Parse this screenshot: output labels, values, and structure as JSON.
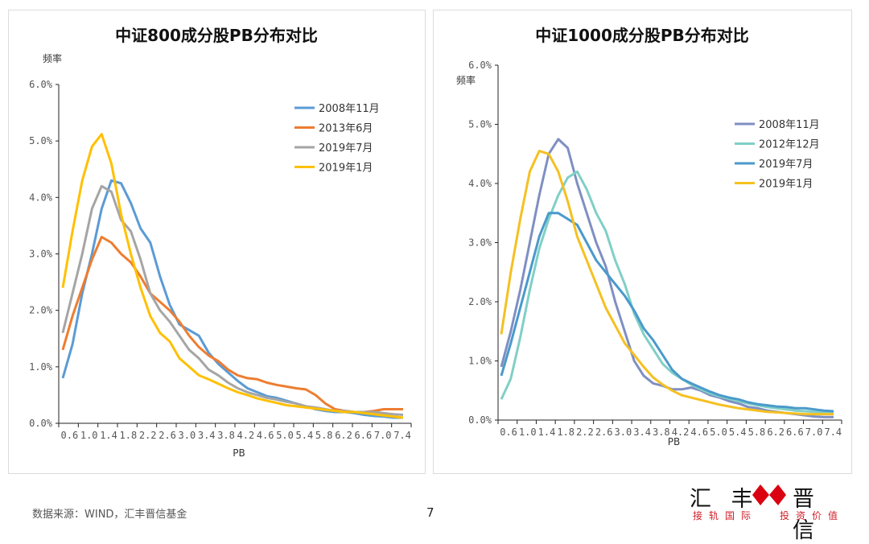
{
  "charts_meta": {
    "footer_source": "数据来源：WIND，汇丰晋信基金",
    "page_number": "7",
    "logo": {
      "left": "汇 丰",
      "right": "晋 信",
      "slogan_left": "接轨国际",
      "slogan_right": "投资价值"
    }
  },
  "chart_data": [
    {
      "type": "line",
      "title": "中证800成分股PB分布对比",
      "ylabel": "频率",
      "xlabel": "PB",
      "ylim": [
        0,
        6
      ],
      "yticks": [
        "0.0%",
        "1.0%",
        "2.0%",
        "3.0%",
        "4.0%",
        "5.0%",
        "6.0%"
      ],
      "xticks": [
        "0.6",
        "1.0",
        "1.4",
        "1.8",
        "2.2",
        "2.6",
        "3.0",
        "3.4",
        "3.8",
        "4.2",
        "4.6",
        "5.0",
        "5.4",
        "5.8",
        "6.2",
        "6.6",
        "7.0",
        "7.4"
      ],
      "legend_position": "top-right",
      "x": [
        0.6,
        0.8,
        1.0,
        1.2,
        1.4,
        1.6,
        1.8,
        2.0,
        2.2,
        2.4,
        2.6,
        2.8,
        3.0,
        3.2,
        3.4,
        3.6,
        3.8,
        4.0,
        4.2,
        4.4,
        4.6,
        4.8,
        5.0,
        5.2,
        5.4,
        5.6,
        5.8,
        6.0,
        6.2,
        6.4,
        6.6,
        6.8,
        7.0,
        7.2,
        7.4,
        7.6
      ],
      "series": [
        {
          "name": "2008年11月",
          "color": "#5b9bd5",
          "values": [
            0.8,
            1.4,
            2.3,
            3.0,
            3.8,
            4.3,
            4.25,
            3.9,
            3.45,
            3.2,
            2.6,
            2.1,
            1.75,
            1.65,
            1.55,
            1.25,
            1.05,
            0.9,
            0.75,
            0.62,
            0.55,
            0.48,
            0.45,
            0.4,
            0.35,
            0.3,
            0.25,
            0.22,
            0.2,
            0.2,
            0.18,
            0.15,
            0.13,
            0.12,
            0.1,
            0.1
          ]
        },
        {
          "name": "2013年6月",
          "color": "#ed7d31",
          "values": [
            1.3,
            1.9,
            2.4,
            2.9,
            3.3,
            3.2,
            3.0,
            2.85,
            2.6,
            2.3,
            2.15,
            2.0,
            1.8,
            1.55,
            1.35,
            1.2,
            1.1,
            0.95,
            0.85,
            0.8,
            0.78,
            0.72,
            0.68,
            0.65,
            0.62,
            0.6,
            0.5,
            0.35,
            0.25,
            0.22,
            0.2,
            0.2,
            0.22,
            0.25,
            0.25,
            0.25
          ]
        },
        {
          "name": "2019年7月",
          "color": "#a5a5a5",
          "values": [
            1.6,
            2.3,
            3.0,
            3.8,
            4.2,
            4.1,
            3.6,
            3.4,
            2.9,
            2.3,
            2.0,
            1.8,
            1.55,
            1.3,
            1.15,
            0.95,
            0.85,
            0.72,
            0.62,
            0.55,
            0.5,
            0.45,
            0.42,
            0.38,
            0.35,
            0.3,
            0.28,
            0.25,
            0.22,
            0.22,
            0.2,
            0.2,
            0.2,
            0.18,
            0.16,
            0.15
          ]
        },
        {
          "name": "2019年1月",
          "color": "#ffc000",
          "values": [
            2.4,
            3.4,
            4.3,
            4.9,
            5.12,
            4.6,
            3.7,
            3.0,
            2.4,
            1.9,
            1.6,
            1.45,
            1.15,
            1.0,
            0.85,
            0.78,
            0.7,
            0.62,
            0.55,
            0.5,
            0.44,
            0.4,
            0.36,
            0.32,
            0.3,
            0.28,
            0.26,
            0.24,
            0.22,
            0.2,
            0.2,
            0.18,
            0.16,
            0.14,
            0.12,
            0.1
          ]
        }
      ]
    },
    {
      "type": "line",
      "title": "中证1000成分股PB分布对比",
      "ylabel": "频率",
      "xlabel": "PB",
      "ylim": [
        0,
        6
      ],
      "yticks": [
        "0.0%",
        "1.0%",
        "2.0%",
        "3.0%",
        "4.0%",
        "5.0%",
        "6.0%"
      ],
      "xticks": [
        "0.6",
        "1.0",
        "1.4",
        "1.8",
        "2.2",
        "2.6",
        "3.0",
        "3.4",
        "3.8",
        "4.2",
        "4.6",
        "5.0",
        "5.4",
        "5.8",
        "6.2",
        "6.6",
        "7.0",
        "7.4"
      ],
      "legend_position": "top-right",
      "x": [
        0.6,
        0.8,
        1.0,
        1.2,
        1.4,
        1.6,
        1.8,
        2.0,
        2.2,
        2.4,
        2.6,
        2.8,
        3.0,
        3.2,
        3.4,
        3.6,
        3.8,
        4.0,
        4.2,
        4.4,
        4.6,
        4.8,
        5.0,
        5.2,
        5.4,
        5.6,
        5.8,
        6.0,
        6.2,
        6.4,
        6.6,
        6.8,
        7.0,
        7.2,
        7.4,
        7.6
      ],
      "series": [
        {
          "name": "2008年11月",
          "color": "#7f8fc2",
          "values": [
            0.9,
            1.5,
            2.2,
            3.0,
            3.8,
            4.5,
            4.75,
            4.6,
            4.0,
            3.5,
            3.0,
            2.6,
            2.0,
            1.5,
            1.0,
            0.75,
            0.62,
            0.58,
            0.52,
            0.52,
            0.55,
            0.5,
            0.42,
            0.38,
            0.32,
            0.28,
            0.22,
            0.2,
            0.16,
            0.14,
            0.12,
            0.1,
            0.08,
            0.06,
            0.05,
            0.05
          ]
        },
        {
          "name": "2012年12月",
          "color": "#80cfc6",
          "values": [
            0.35,
            0.7,
            1.4,
            2.2,
            2.9,
            3.4,
            3.8,
            4.1,
            4.2,
            3.9,
            3.5,
            3.2,
            2.7,
            2.3,
            1.8,
            1.45,
            1.2,
            0.95,
            0.8,
            0.7,
            0.6,
            0.52,
            0.45,
            0.4,
            0.36,
            0.32,
            0.28,
            0.25,
            0.22,
            0.2,
            0.18,
            0.16,
            0.15,
            0.14,
            0.13,
            0.12
          ]
        },
        {
          "name": "2019年7月",
          "color": "#4a9acb",
          "values": [
            0.75,
            1.3,
            1.9,
            2.5,
            3.1,
            3.5,
            3.5,
            3.4,
            3.3,
            3.0,
            2.7,
            2.5,
            2.3,
            2.1,
            1.85,
            1.55,
            1.35,
            1.1,
            0.85,
            0.7,
            0.62,
            0.55,
            0.48,
            0.42,
            0.38,
            0.35,
            0.3,
            0.27,
            0.25,
            0.23,
            0.22,
            0.2,
            0.2,
            0.18,
            0.16,
            0.15
          ]
        },
        {
          "name": "2019年1月",
          "color": "#f5c021",
          "values": [
            1.45,
            2.5,
            3.4,
            4.2,
            4.55,
            4.5,
            4.2,
            3.7,
            3.1,
            2.7,
            2.3,
            1.9,
            1.6,
            1.3,
            1.1,
            0.9,
            0.72,
            0.6,
            0.5,
            0.42,
            0.38,
            0.34,
            0.3,
            0.26,
            0.23,
            0.2,
            0.18,
            0.16,
            0.14,
            0.13,
            0.12,
            0.11,
            0.1,
            0.1,
            0.1,
            0.1
          ]
        }
      ]
    }
  ]
}
